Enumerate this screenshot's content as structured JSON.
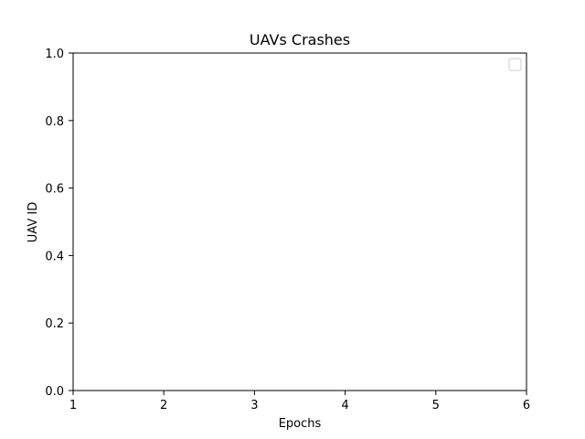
{
  "chart_data": {
    "type": "line",
    "title": "UAVs Crashes",
    "xlabel": "Epochs",
    "ylabel": "UAV ID",
    "xlim": [
      1,
      6
    ],
    "ylim": [
      0.0,
      1.0
    ],
    "x_ticks": [
      "1",
      "2",
      "3",
      "4",
      "5",
      "6"
    ],
    "y_ticks": [
      "0.0",
      "0.2",
      "0.4",
      "0.6",
      "0.8",
      "1.0"
    ],
    "series": [],
    "legend": {
      "location": "top-right",
      "entries": []
    },
    "grid": false
  },
  "colors": {
    "axes": "#000000",
    "background": "#ffffff",
    "legend_border": "#cccccc"
  }
}
